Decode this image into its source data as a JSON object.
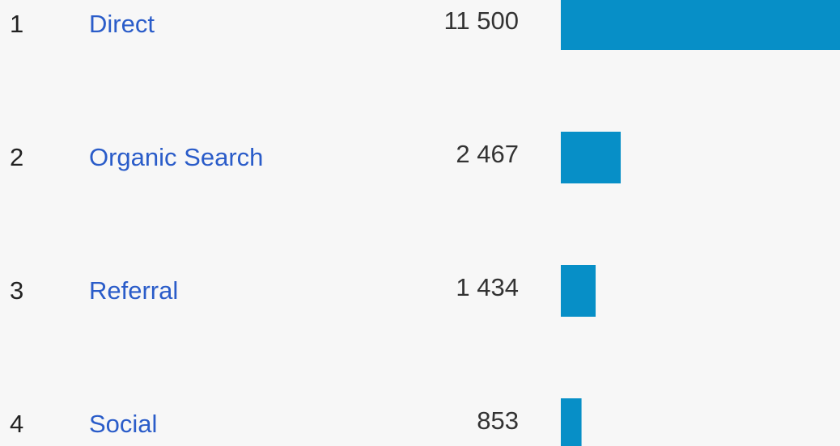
{
  "table": {
    "rows": [
      {
        "rank": 1,
        "channel": "Direct",
        "sessions": 11500,
        "sessions_label": "11 500"
      },
      {
        "rank": 2,
        "channel": "Organic Search",
        "sessions": 2467,
        "sessions_label": "2 467"
      },
      {
        "rank": 3,
        "channel": "Referral",
        "sessions": 1434,
        "sessions_label": "1 434"
      },
      {
        "rank": 4,
        "channel": "Social",
        "sessions": 853,
        "sessions_label": "853"
      }
    ]
  }
}
